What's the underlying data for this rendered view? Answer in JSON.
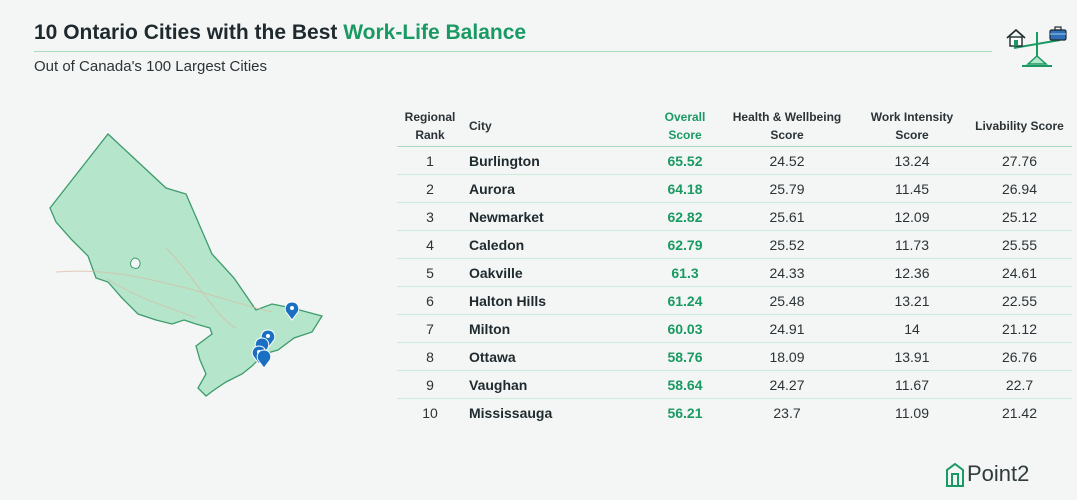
{
  "header": {
    "title_prefix": "10 Ontario Cities with the Best ",
    "title_accent": "Work-Life Balance",
    "subtitle": "Out of Canada's 100 Largest Cities"
  },
  "colors": {
    "accent": "#1a9a63",
    "map_fill": "#b5e6cc",
    "map_stroke": "#3d9b6c",
    "pin": "#1a6fc2",
    "background": "#f4f5f5"
  },
  "icons": {
    "balance": "scale-home-briefcase-icon",
    "pin": "location-pin-icon",
    "logo": "point2-logo-icon"
  },
  "table": {
    "headers": {
      "rank": "Regional Rank",
      "city": "City",
      "overall": "Overall Score",
      "health": "Health & Wellbeing Score",
      "work": "Work Intensity Score",
      "livability": "Livability Score"
    },
    "rows": [
      {
        "rank": "1",
        "city": "Burlington",
        "overall": "65.52",
        "health": "24.52",
        "work": "13.24",
        "livability": "27.76"
      },
      {
        "rank": "2",
        "city": "Aurora",
        "overall": "64.18",
        "health": "25.79",
        "work": "11.45",
        "livability": "26.94"
      },
      {
        "rank": "3",
        "city": "Newmarket",
        "overall": "62.82",
        "health": "25.61",
        "work": "12.09",
        "livability": "25.12"
      },
      {
        "rank": "4",
        "city": "Caledon",
        "overall": "62.79",
        "health": "25.52",
        "work": "11.73",
        "livability": "25.55"
      },
      {
        "rank": "5",
        "city": "Oakville",
        "overall": "61.3",
        "health": "24.33",
        "work": "12.36",
        "livability": "24.61"
      },
      {
        "rank": "6",
        "city": "Halton Hills",
        "overall": "61.24",
        "health": "25.48",
        "work": "13.21",
        "livability": "22.55"
      },
      {
        "rank": "7",
        "city": "Milton",
        "overall": "60.03",
        "health": "24.91",
        "work": "14",
        "livability": "21.12"
      },
      {
        "rank": "8",
        "city": "Ottawa",
        "overall": "58.76",
        "health": "18.09",
        "work": "13.91",
        "livability": "26.76"
      },
      {
        "rank": "9",
        "city": "Vaughan",
        "overall": "58.64",
        "health": "24.27",
        "work": "11.67",
        "livability": "22.7"
      },
      {
        "rank": "10",
        "city": "Mississauga",
        "overall": "56.21",
        "health": "23.7",
        "work": "11.09",
        "livability": "21.42"
      }
    ]
  },
  "logo": {
    "text": "Point2"
  }
}
